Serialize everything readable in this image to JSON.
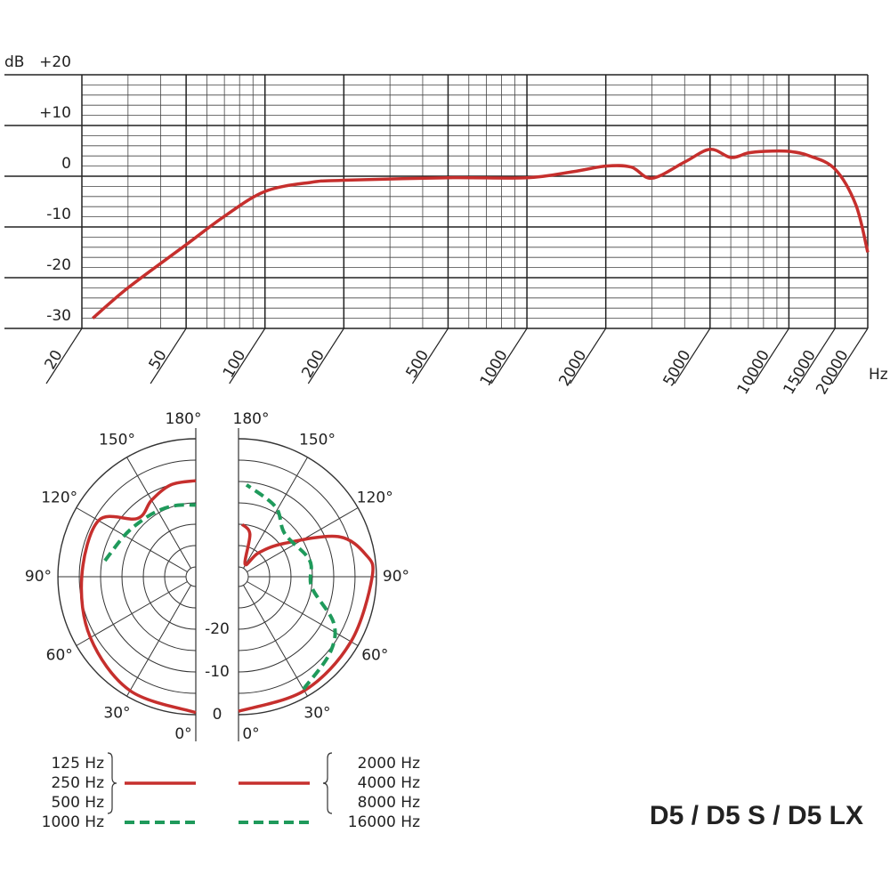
{
  "chart_data": [
    {
      "type": "line",
      "y_unit": "dB",
      "x_unit": "Hz",
      "xscale": "log",
      "xlim": [
        20,
        20000
      ],
      "xticks": [
        20,
        50,
        100,
        200,
        500,
        1000,
        2000,
        5000,
        10000,
        15000,
        20000
      ],
      "ylim": [
        -30,
        20
      ],
      "yticks": [
        -30,
        -20,
        -10,
        0,
        {
          "value": 10,
          "label": "+10"
        },
        {
          "value": 20,
          "label": "+20"
        }
      ],
      "grid": true,
      "x": [
        22,
        30,
        50,
        70,
        100,
        150,
        200,
        500,
        1000,
        1500,
        2000,
        2500,
        3000,
        4000,
        5000,
        6000,
        7000,
        8000,
        10000,
        12000,
        15000,
        18000,
        20000
      ],
      "series": [
        {
          "color": "#c62f2d",
          "values": [
            -28,
            -22,
            -13.5,
            -7.9,
            -3,
            -1.2,
            -0.8,
            -0.3,
            -0.3,
            0.9,
            2,
            1.8,
            -0.4,
            2.8,
            5.3,
            3.7,
            4.6,
            4.9,
            4.9,
            4,
            1.4,
            -5.6,
            -15
          ]
        }
      ]
    },
    {
      "type": "polar",
      "rlim": [
        -30,
        0
      ],
      "rticks": [
        -20,
        -10,
        0
      ],
      "thetaticks": [
        {
          "value": 0,
          "label": "0°"
        },
        {
          "value": 30,
          "label": "30°"
        },
        {
          "value": 60,
          "label": "60°"
        },
        {
          "value": 90,
          "label": "90°"
        },
        {
          "value": 120,
          "label": "120°"
        },
        {
          "value": 150,
          "label": "150°"
        },
        {
          "value": 180,
          "label": "180°"
        }
      ],
      "series": [
        {
          "side": "left",
          "color": "#c62f2d",
          "dash": false,
          "labels": [
            "125 Hz",
            "250 Hz",
            "500 Hz"
          ],
          "theta": [
            0,
            30,
            60,
            90,
            120,
            135,
            150,
            165,
            180
          ],
          "values": [
            -0.5,
            -1.5,
            -3.8,
            -5.6,
            -6,
            -13,
            -11.6,
            -10,
            -9.8
          ]
        },
        {
          "side": "left",
          "color": "#1f9a5b",
          "dash": true,
          "labels": [
            "1000 Hz"
          ],
          "theta": [
            100,
            120,
            135,
            150,
            165,
            180
          ],
          "values": [
            -10.7,
            -13,
            -14,
            -14.5,
            -15,
            -15.5
          ]
        },
        {
          "side": "right",
          "color": "#c62f2d",
          "dash": false,
          "labels": [
            "2000 Hz",
            "4000 Hz",
            "8000 Hz"
          ],
          "theta": [
            0,
            30,
            60,
            90,
            100,
            112,
            126,
            140,
            152,
            165,
            176
          ],
          "values": [
            -0.8,
            -1.5,
            -1.9,
            -1,
            -2.1,
            -7.2,
            -19,
            -25,
            -29,
            -22,
            -20
          ]
        },
        {
          "side": "right",
          "color": "#1f9a5b",
          "dash": true,
          "labels": [
            "16000 Hz"
          ],
          "theta": [
            30,
            50,
            64,
            82,
            103,
            133,
            152,
            175
          ],
          "values": [
            -1.9,
            -4.4,
            -7.5,
            -15,
            -15.2,
            -17.5,
            -13.8,
            -10.7
          ]
        }
      ]
    }
  ],
  "model": "D5 / D5 S / D5 LX"
}
